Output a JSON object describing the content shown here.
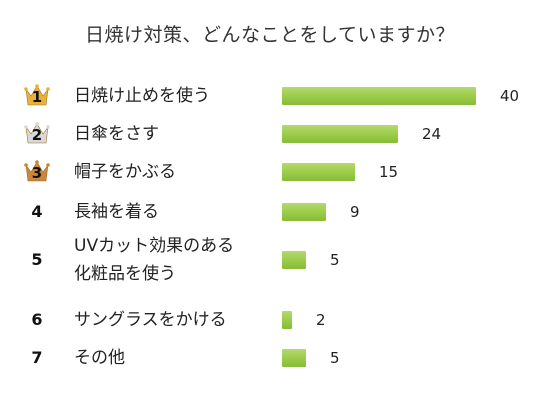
{
  "title": "日焼け対策、どんなことをしていますか？",
  "colors": {
    "bar": "#9acb48",
    "gold": "#e8b23a",
    "silver": "#d8d8d8",
    "bronze": "#c9863d"
  },
  "chart_data": {
    "type": "bar",
    "orientation": "horizontal",
    "title": "日焼け対策、どんなことをしていますか？",
    "categories": [
      "日焼け止めを使う",
      "日傘をさす",
      "帽子をかぶる",
      "長袖を着る",
      "UVカット効果のある化粧品を使う",
      "サングラスをかける",
      "その他"
    ],
    "values": [
      40,
      24,
      15,
      9,
      5,
      2,
      5
    ],
    "data_labels": true,
    "grid": false
  },
  "rows": [
    {
      "rank": "1",
      "medal": "gold",
      "label": "日焼け止めを使う",
      "value": "40"
    },
    {
      "rank": "2",
      "medal": "silver",
      "label": "日傘をさす",
      "value": "24"
    },
    {
      "rank": "3",
      "medal": "bronze",
      "label": "帽子をかぶる",
      "value": "15"
    },
    {
      "rank": "4",
      "medal": "",
      "label": "長袖を着る",
      "value": "9"
    },
    {
      "rank": "5",
      "medal": "",
      "label": "UVカット効果のある化粧品を使う",
      "label_line1": "UVカット効果のある",
      "label_line2": "化粧品を使う",
      "value": "5"
    },
    {
      "rank": "6",
      "medal": "",
      "label": "サングラスをかける",
      "value": "2"
    },
    {
      "rank": "7",
      "medal": "",
      "label": "その他",
      "value": "5"
    }
  ]
}
